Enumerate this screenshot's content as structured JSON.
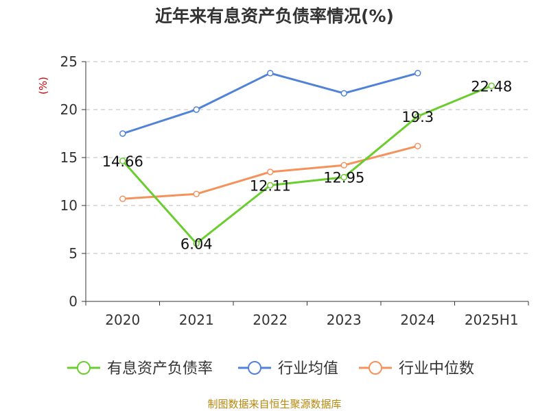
{
  "chart_data": {
    "type": "line",
    "title": "近年来有息资产负债率情况(%)",
    "ylabel": "(%)",
    "xlabel": "",
    "categories": [
      "2020",
      "2021",
      "2022",
      "2023",
      "2024",
      "2025H1"
    ],
    "ylim": [
      0,
      25
    ],
    "yticks": [
      0,
      5,
      10,
      15,
      20,
      25
    ],
    "grid": true,
    "legend_position": "bottom",
    "series": [
      {
        "name": "有息资产负债率",
        "color": "#6acd2e",
        "values": [
          14.66,
          6.04,
          12.11,
          12.95,
          19.3,
          22.48
        ],
        "labels": [
          "14.66",
          "6.04",
          "12.11",
          "12.95",
          "19.3",
          "22.48"
        ]
      },
      {
        "name": "行业均值",
        "color": "#4f82d8",
        "values": [
          17.5,
          20.0,
          23.8,
          21.7,
          23.8,
          null
        ]
      },
      {
        "name": "行业中位数",
        "color": "#f5915a",
        "values": [
          10.7,
          11.2,
          13.5,
          14.2,
          16.2,
          null
        ]
      }
    ]
  },
  "source": "制图数据来自恒生聚源数据库",
  "colors": {
    "axis": "#333333",
    "grid": "#bbbbbb",
    "ylabel": "#cc0000",
    "source": "#b8860b"
  }
}
